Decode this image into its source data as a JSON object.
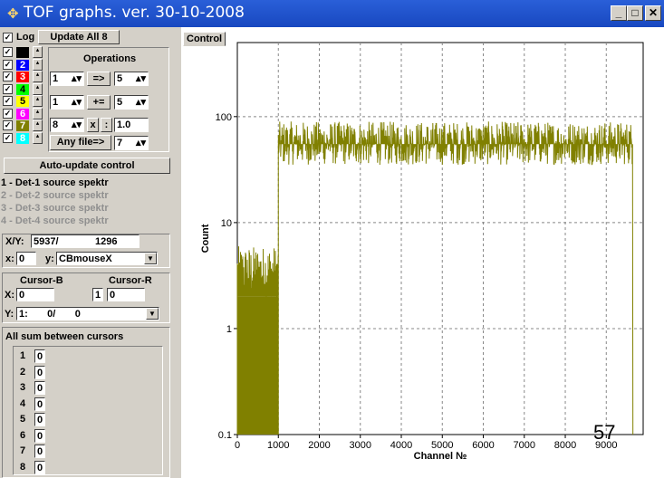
{
  "window": {
    "title": "TOF graphs. ver. 30-10-2008",
    "buttons": {
      "minimize": "_",
      "maximize": "□",
      "close": "✕"
    }
  },
  "panel": {
    "log_label": "Log",
    "update_all_label": "Update All 8",
    "operations_label": "Operations",
    "detectors": [
      {
        "num": "",
        "color": "#000000",
        "checked": true
      },
      {
        "num": "2",
        "color": "#0000ff",
        "checked": true
      },
      {
        "num": "3",
        "color": "#ff0000",
        "checked": true
      },
      {
        "num": "4",
        "color": "#00ff00",
        "checked": true
      },
      {
        "num": "5",
        "color": "#ffff00",
        "checked": true
      },
      {
        "num": "6",
        "color": "#ff00ff",
        "checked": true
      },
      {
        "num": "7",
        "color": "#808000",
        "checked": true
      },
      {
        "num": "8",
        "color": "#00ffff",
        "checked": true
      }
    ],
    "ops": [
      {
        "from": "1",
        "op": "=>",
        "to": "5"
      },
      {
        "from": "1",
        "op": "+=",
        "to": "5"
      },
      {
        "from": "8",
        "op": "x",
        "op2": ":",
        "to": "1.0"
      },
      {
        "op": "Any file=>",
        "to": "7"
      }
    ],
    "auto_update_label": "Auto-update control",
    "sources": [
      {
        "text": "1 -  Det-1 source spektr",
        "active": true
      },
      {
        "text": "2 -  Det-2 source spektr",
        "active": false
      },
      {
        "text": "3 -  Det-3 source spektr",
        "active": false
      },
      {
        "text": "4 -  Det-4 source spektr",
        "active": false
      }
    ],
    "xy": {
      "label": "X/Y:",
      "value_x": "5937/",
      "value_y": "1296",
      "x_label": "x:",
      "x_value": "0",
      "y_label": "y:",
      "y_select": "CBmouseX"
    },
    "cursors": {
      "b_label": "Cursor-B",
      "r_label": "Cursor-R",
      "x_label": "X:",
      "b_value": "0",
      "mid_value": "1",
      "r_value": "0",
      "y_label": "Y:",
      "y_select": "1:       0/       0"
    },
    "sums": {
      "title": "All sum between cursors",
      "rows": [
        {
          "n": "1",
          "v": "0"
        },
        {
          "n": "2",
          "v": "0"
        },
        {
          "n": "3",
          "v": "0"
        },
        {
          "n": "4",
          "v": "0"
        },
        {
          "n": "5",
          "v": "0"
        },
        {
          "n": "6",
          "v": "0"
        },
        {
          "n": "7",
          "v": "0"
        },
        {
          "n": "8",
          "v": "0"
        }
      ]
    }
  },
  "chart_tab": "Control",
  "chart_data": {
    "type": "line",
    "title": "",
    "xlabel": "Channel №",
    "ylabel": "Count",
    "xlim": [
      0,
      9900
    ],
    "ylim": [
      0.1,
      500
    ],
    "yscale": "log",
    "grid": true,
    "x_ticks": [
      0,
      1000,
      2000,
      3000,
      4000,
      5000,
      6000,
      7000,
      8000,
      9000
    ],
    "y_ticks": [
      {
        "value": 0.1,
        "label": "0.1"
      },
      {
        "value": 1,
        "label": "1"
      },
      {
        "value": 10,
        "label": "10"
      },
      {
        "value": 100,
        "label": "100"
      }
    ],
    "annotation": "57",
    "series": [
      {
        "color": "#808000",
        "segments": [
          {
            "x_start": 0,
            "x_end": 1000,
            "base": 2.0,
            "min": 2.0,
            "max": 6.0
          },
          {
            "x_start": 1000,
            "x_end": 9650,
            "base": 55,
            "min": 35,
            "max": 90
          }
        ]
      }
    ]
  }
}
